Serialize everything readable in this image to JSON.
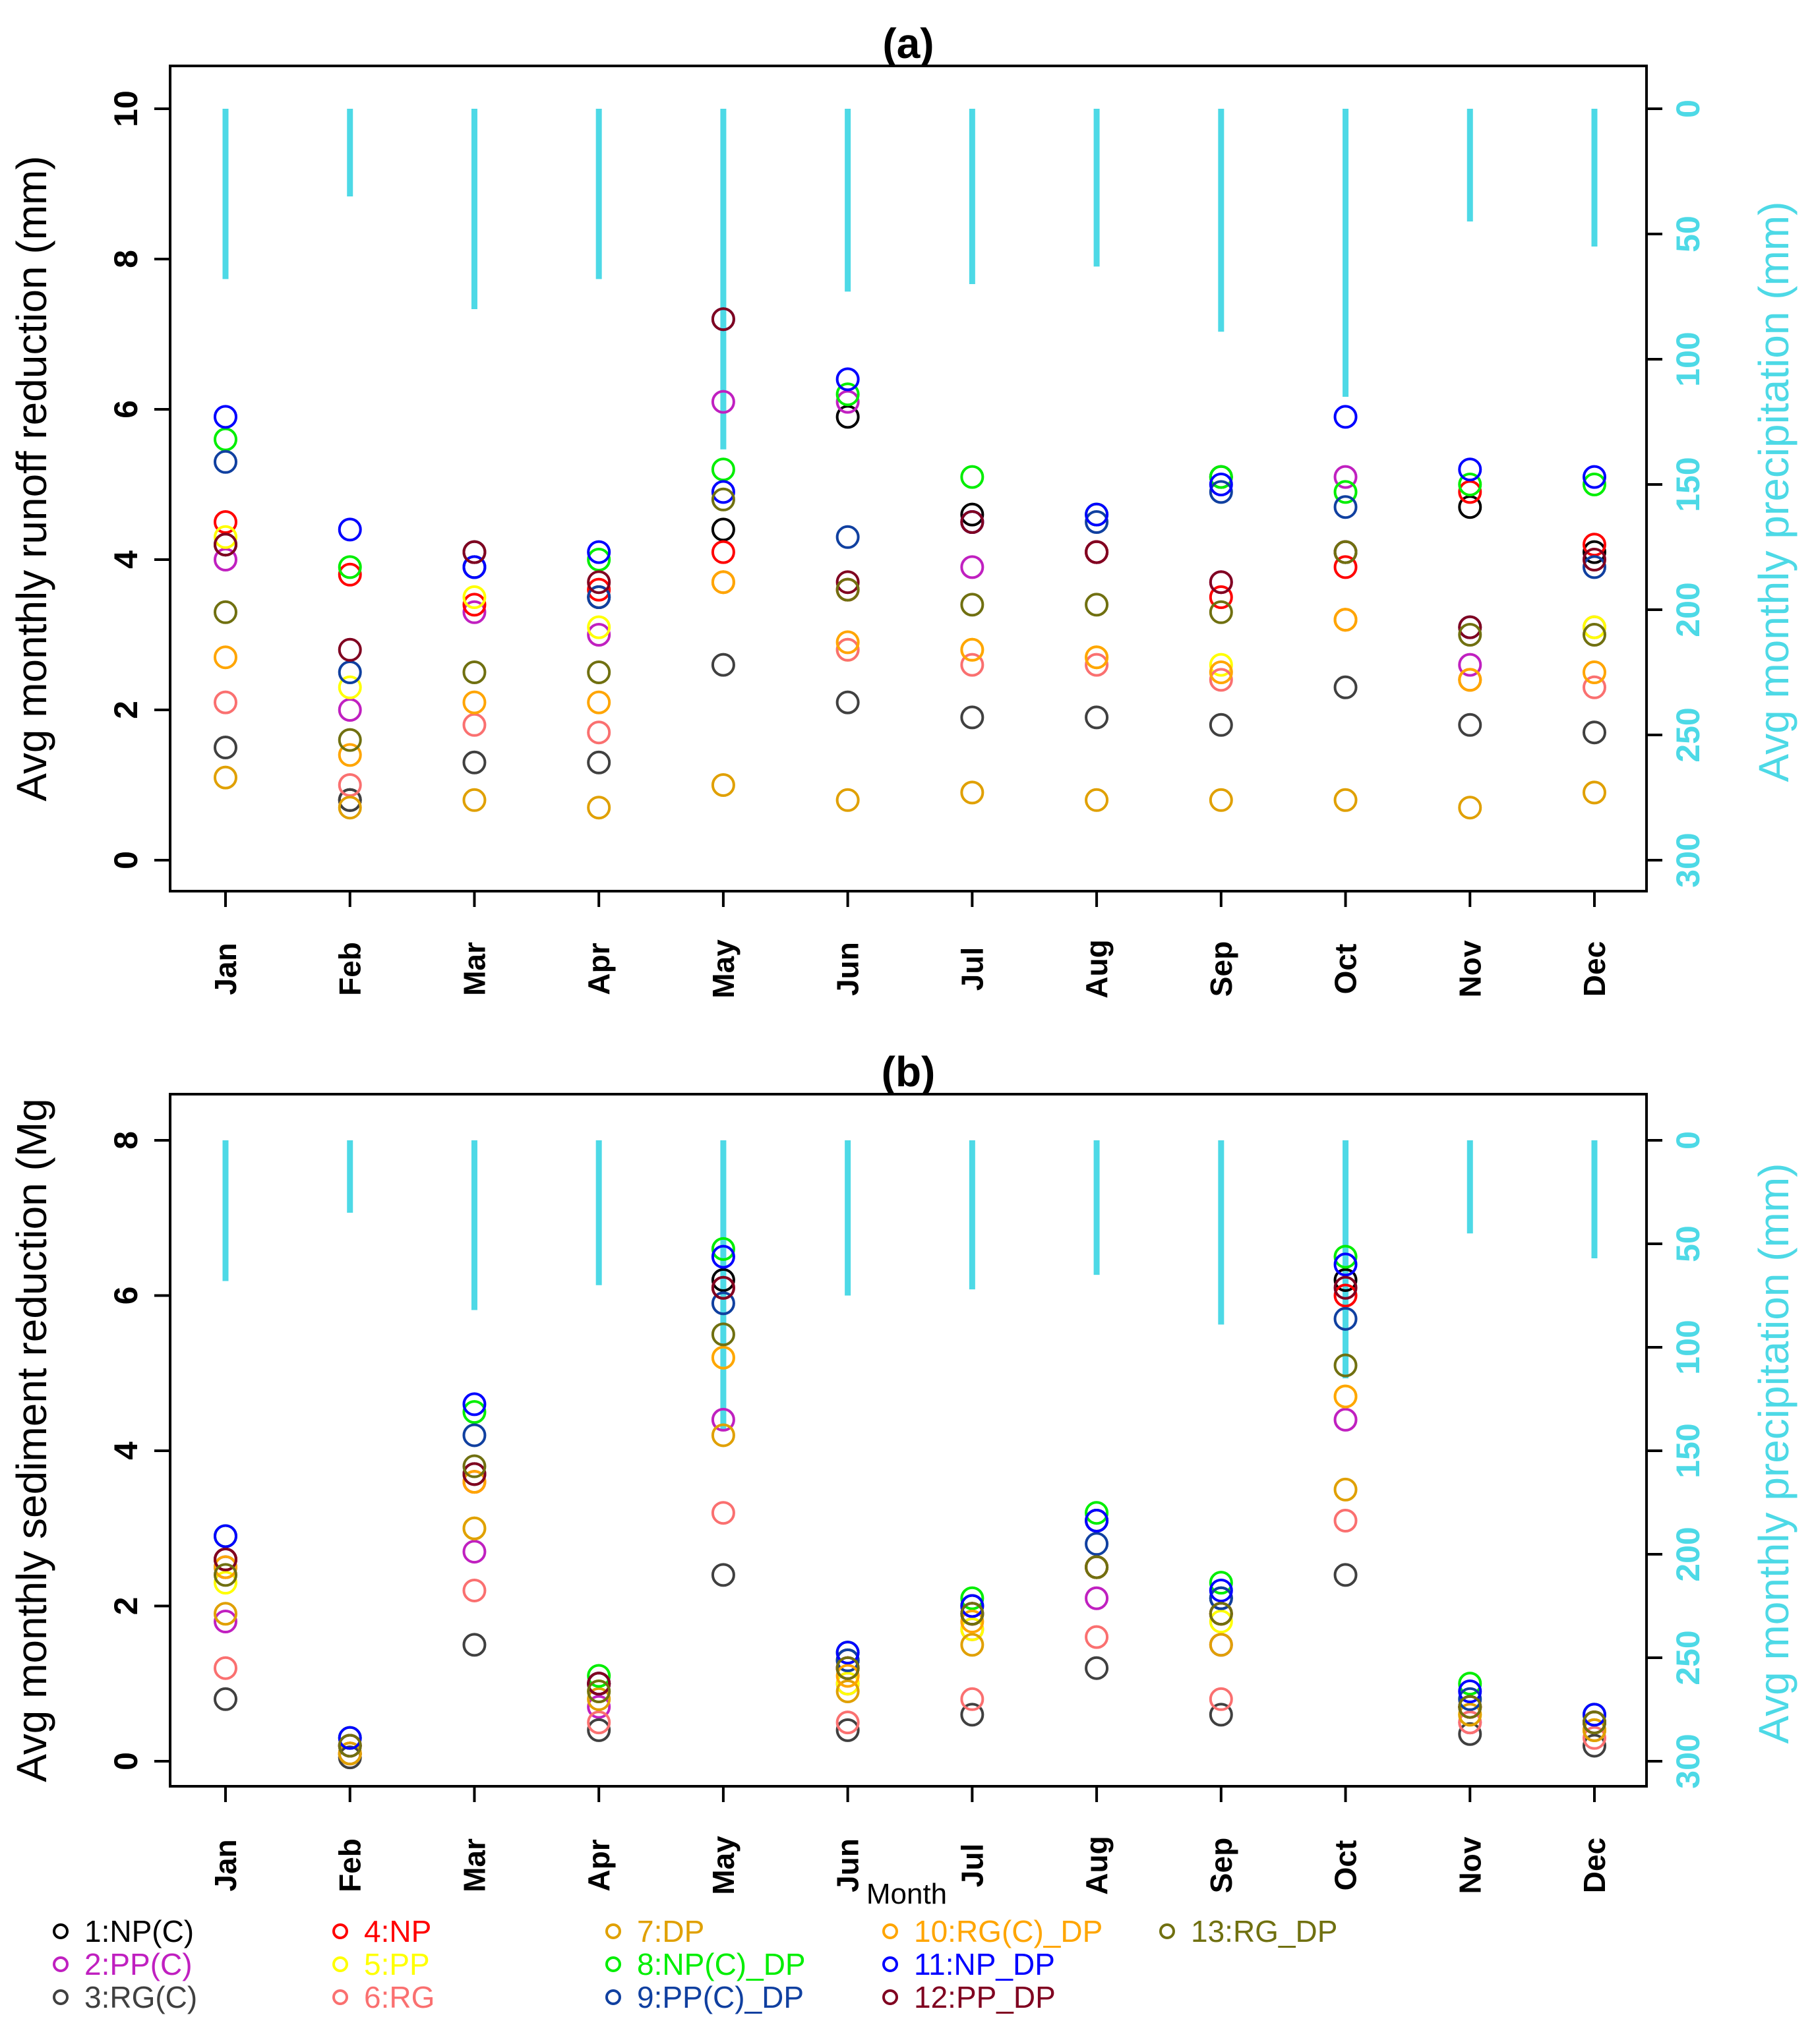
{
  "chart_data": [
    {
      "type": "scatter",
      "title": "(a)",
      "ylabel": "Avg monthly runoff reduction (mm)",
      "ylabel_right": "Avg monthly precipitation (mm)",
      "ylim": [
        0,
        10
      ],
      "yticks": [
        0,
        2,
        4,
        6,
        8,
        10
      ],
      "ylim_right": [
        0,
        300
      ],
      "yticks_right": [
        0,
        50,
        100,
        150,
        200,
        250,
        300
      ],
      "right_axis_inverted": true,
      "categories": [
        "Jan",
        "Feb",
        "Mar",
        "Apr",
        "May",
        "Jun",
        "Jul",
        "Aug",
        "Sep",
        "Oct",
        "Nov",
        "Dec"
      ],
      "precipitation": [
        68,
        35,
        80,
        68,
        136,
        73,
        70,
        63,
        89,
        115,
        45,
        55
      ],
      "series": [
        {
          "name": "1:NP(C)",
          "values": [
            4.2,
            0.8,
            4.1,
            3.5,
            4.4,
            5.9,
            4.6,
            4.1,
            5.1,
            4.1,
            4.7,
            4.1
          ]
        },
        {
          "name": "2:PP(C)",
          "values": [
            4.0,
            2.0,
            3.3,
            3.0,
            6.1,
            6.1,
            3.9,
            4.1,
            3.7,
            5.1,
            2.6,
            3.1
          ]
        },
        {
          "name": "3:RG(C)",
          "values": [
            1.5,
            0.8,
            1.3,
            1.3,
            2.6,
            2.1,
            1.9,
            1.9,
            1.8,
            2.3,
            1.8,
            1.7
          ]
        },
        {
          "name": "4:NP",
          "values": [
            4.5,
            3.8,
            3.4,
            3.6,
            4.1,
            3.6,
            4.5,
            4.1,
            3.5,
            3.9,
            4.9,
            4.2
          ]
        },
        {
          "name": "5:PP",
          "values": [
            4.3,
            2.3,
            3.5,
            3.1,
            3.7,
            2.8,
            2.8,
            2.7,
            2.6,
            3.2,
            2.4,
            3.1
          ]
        },
        {
          "name": "6:RG",
          "values": [
            2.1,
            1.0,
            1.8,
            1.7,
            3.7,
            2.8,
            2.6,
            2.6,
            2.4,
            3.2,
            2.4,
            2.3
          ]
        },
        {
          "name": "7:DP",
          "values": [
            1.1,
            0.7,
            0.8,
            0.7,
            1.0,
            0.8,
            0.9,
            0.8,
            0.8,
            0.8,
            0.7,
            0.9
          ]
        },
        {
          "name": "8:NP(C)_DP",
          "values": [
            5.6,
            3.9,
            3.9,
            4.0,
            5.2,
            6.2,
            5.1,
            4.6,
            5.1,
            4.9,
            5.0,
            5.0
          ]
        },
        {
          "name": "9:PP(C)_DP",
          "values": [
            5.3,
            2.5,
            3.9,
            3.5,
            7.2,
            4.3,
            4.5,
            4.5,
            4.9,
            4.7,
            3.1,
            3.9
          ]
        },
        {
          "name": "10:RG(C)_DP",
          "values": [
            2.7,
            1.4,
            2.1,
            2.1,
            3.7,
            2.9,
            2.8,
            2.7,
            2.5,
            3.2,
            2.4,
            2.5
          ]
        },
        {
          "name": "11:NP_DP",
          "values": [
            5.9,
            4.4,
            3.9,
            4.1,
            4.9,
            6.4,
            4.5,
            4.6,
            5.0,
            5.9,
            5.2,
            5.1
          ]
        },
        {
          "name": "12:PP_DP",
          "values": [
            4.2,
            2.8,
            4.1,
            3.7,
            7.2,
            3.7,
            4.5,
            4.1,
            3.7,
            4.1,
            3.1,
            4.0
          ]
        },
        {
          "name": "13:RG_DP",
          "values": [
            3.3,
            1.6,
            2.5,
            2.5,
            4.8,
            3.6,
            3.4,
            3.4,
            3.3,
            4.1,
            3.0,
            3.0
          ]
        }
      ]
    },
    {
      "type": "scatter",
      "title": "(b)",
      "ylabel": "Avg monthly sediment reduction (Mg",
      "ylabel_right": "Avg monthly precipitation (mm)",
      "xlabel": "Month",
      "ylim": [
        0,
        8
      ],
      "yticks": [
        0,
        2,
        4,
        6,
        8
      ],
      "ylim_right": [
        0,
        300
      ],
      "yticks_right": [
        0,
        50,
        100,
        150,
        200,
        250,
        300
      ],
      "right_axis_inverted": true,
      "categories": [
        "Jan",
        "Feb",
        "Mar",
        "Apr",
        "May",
        "Jun",
        "Jul",
        "Aug",
        "Sep",
        "Oct",
        "Nov",
        "Dec"
      ],
      "precipitation": [
        68,
        35,
        82,
        70,
        140,
        75,
        72,
        65,
        89,
        115,
        45,
        57
      ],
      "series": [
        {
          "name": "1:NP(C)",
          "values": [
            2.6,
            0.1,
            3.7,
            1.0,
            6.2,
            1.3,
            2.0,
            3.1,
            2.1,
            6.2,
            0.7,
            0.5
          ]
        },
        {
          "name": "2:PP(C)",
          "values": [
            1.8,
            0.1,
            2.7,
            0.7,
            4.4,
            1.0,
            1.7,
            2.1,
            1.5,
            4.4,
            0.5,
            0.4
          ]
        },
        {
          "name": "3:RG(C)",
          "values": [
            0.8,
            0.05,
            1.5,
            0.4,
            2.4,
            0.4,
            0.6,
            1.2,
            0.6,
            2.4,
            0.35,
            0.2
          ]
        },
        {
          "name": "4:NP",
          "values": [
            2.6,
            0.2,
            3.6,
            1.0,
            6.1,
            1.2,
            1.9,
            2.5,
            1.9,
            6.0,
            0.7,
            0.5
          ]
        },
        {
          "name": "5:PP",
          "values": [
            2.3,
            0.1,
            3.0,
            0.9,
            5.2,
            1.0,
            1.7,
            2.5,
            1.8,
            4.7,
            0.6,
            0.4
          ]
        },
        {
          "name": "6:RG",
          "values": [
            1.2,
            0.1,
            2.2,
            0.5,
            3.2,
            0.5,
            0.8,
            1.6,
            0.8,
            3.1,
            0.5,
            0.3
          ]
        },
        {
          "name": "7:DP",
          "values": [
            1.9,
            0.1,
            3.0,
            0.8,
            4.2,
            0.9,
            1.5,
            2.5,
            1.5,
            3.5,
            0.6,
            0.4
          ]
        },
        {
          "name": "8:NP(C)_DP",
          "values": [
            2.9,
            0.3,
            4.5,
            1.1,
            6.6,
            1.4,
            2.1,
            3.2,
            2.3,
            6.5,
            1.0,
            0.6
          ]
        },
        {
          "name": "9:PP(C)_DP",
          "values": [
            2.5,
            0.2,
            4.2,
            1.0,
            5.9,
            1.3,
            1.9,
            2.8,
            2.1,
            5.7,
            0.8,
            0.5
          ]
        },
        {
          "name": "10:RG(C)_DP",
          "values": [
            2.5,
            0.2,
            3.6,
            1.0,
            5.2,
            1.1,
            1.8,
            2.5,
            1.9,
            4.7,
            0.7,
            0.5
          ]
        },
        {
          "name": "11:NP_DP",
          "values": [
            2.9,
            0.3,
            4.6,
            1.0,
            6.5,
            1.4,
            2.0,
            3.1,
            2.2,
            6.4,
            0.9,
            0.6
          ]
        },
        {
          "name": "12:PP_DP",
          "values": [
            2.6,
            0.2,
            3.7,
            1.0,
            6.1,
            1.2,
            1.9,
            2.5,
            1.9,
            6.1,
            0.7,
            0.5
          ]
        },
        {
          "name": "13:RG_DP",
          "values": [
            2.4,
            0.2,
            3.8,
            0.9,
            5.5,
            1.2,
            1.9,
            2.5,
            1.9,
            5.1,
            0.7,
            0.5
          ]
        }
      ]
    }
  ],
  "legend": [
    {
      "label": "1:NP(C)",
      "color": "#000000"
    },
    {
      "label": "2:PP(C)",
      "color": "#c020c0"
    },
    {
      "label": "3:RG(C)",
      "color": "#404040"
    },
    {
      "label": "4:NP",
      "color": "#ff0000"
    },
    {
      "label": "5:PP",
      "color": "#ffff00"
    },
    {
      "label": "6:RG",
      "color": "#fa7070"
    },
    {
      "label": "7:DP",
      "color": "#e0a000"
    },
    {
      "label": "8:NP(C)_DP",
      "color": "#00ee00"
    },
    {
      "label": "9:PP(C)_DP",
      "color": "#1040a0"
    },
    {
      "label": "10:RG(C)_DP",
      "color": "#ffa500"
    },
    {
      "label": "11:NP_DP",
      "color": "#0000ff"
    },
    {
      "label": "12:PP_DP",
      "color": "#800020"
    },
    {
      "label": "13:RG_DP",
      "color": "#707010"
    }
  ],
  "precip_color": "#4dd9e6"
}
